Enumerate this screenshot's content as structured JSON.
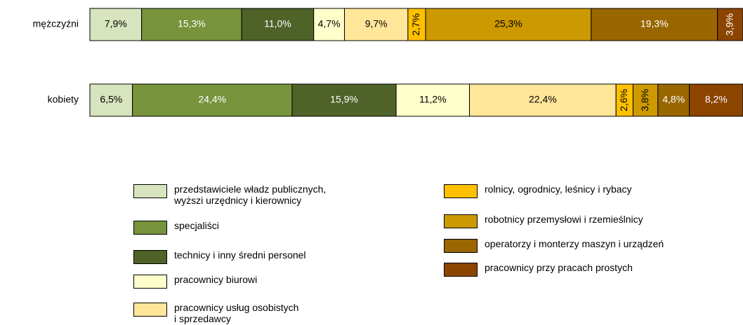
{
  "chart_data": {
    "type": "stacked-bar-100",
    "categories": [
      "mężczyźni",
      "kobiety"
    ],
    "series": [
      {
        "name": "przedstawiciele władz publicznych,\nwyższi urzędnicy i kierownicy",
        "color": "#d7e4bd",
        "values": [
          7.9,
          6.5
        ],
        "value_labels": [
          "7,9%",
          "6,5%"
        ]
      },
      {
        "name": "specjaliści",
        "color": "#77933c",
        "values": [
          15.3,
          24.4
        ],
        "value_labels": [
          "15,3%",
          "24,4%"
        ]
      },
      {
        "name": "technicy i inny średni personel",
        "color": "#4f6228",
        "values": [
          11.0,
          15.9
        ],
        "value_labels": [
          "11,0%",
          "15,9%"
        ]
      },
      {
        "name": "pracownicy biurowi",
        "color": "#ffffcc",
        "values": [
          4.7,
          11.2
        ],
        "value_labels": [
          "4,7%",
          "11,2%"
        ]
      },
      {
        "name": "pracownicy usług osobistych\ni sprzedawcy",
        "color": "#ffe699",
        "values": [
          9.7,
          22.4
        ],
        "value_labels": [
          "9,7%",
          "22,4%"
        ]
      },
      {
        "name": "rolnicy, ogrodnicy, leśnicy i rybacy",
        "color": "#ffc000",
        "values": [
          2.7,
          2.6
        ],
        "value_labels": [
          "2,7%",
          "2,6%"
        ]
      },
      {
        "name": "robotnicy przemysłowi i rzemieślnicy",
        "color": "#cc9900",
        "values": [
          25.3,
          3.8
        ],
        "value_labels": [
          "25,3%",
          "3,8%"
        ]
      },
      {
        "name": "operatorzy i monterzy maszyn i urządzeń",
        "color": "#996600",
        "values": [
          19.3,
          4.8
        ],
        "value_labels": [
          "19,3%",
          "4,8%"
        ]
      },
      {
        "name": "pracownicy przy pracach prostych",
        "color": "#8b4500",
        "values": [
          3.9,
          8.2
        ],
        "value_labels": [
          "3,9%",
          "8,2%"
        ]
      }
    ]
  }
}
